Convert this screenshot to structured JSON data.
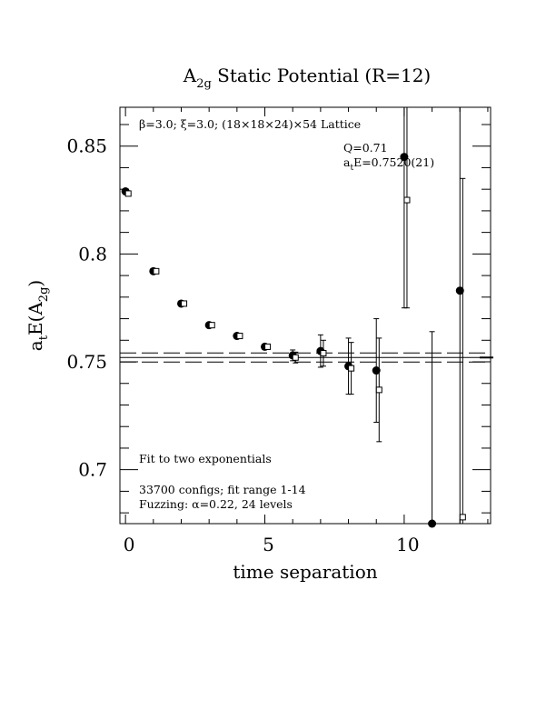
{
  "chart_data": {
    "type": "scatter",
    "title": {
      "main": "A",
      "sub": "2g",
      "rest": " Static Potential (R=12)"
    },
    "xlabel": "time separation",
    "ylabel": {
      "a": "a",
      "t": "t",
      "E": "E(A",
      "two": "2g",
      "close": ")"
    },
    "xlim": [
      -0.2,
      13.1
    ],
    "ylim": [
      0.675,
      0.868
    ],
    "x_ticks": [
      0,
      5,
      10
    ],
    "y_ticks": [
      0.7,
      0.75,
      0.8,
      0.85
    ],
    "x_tick_labels": [
      "0",
      "5",
      "10"
    ],
    "y_tick_labels": [
      "0.7",
      "0.75",
      "0.8",
      "0.85"
    ],
    "annotations": {
      "lattice": "β=3.0; ξ=3.0; (18×18×24)×54 Lattice",
      "q": "Q=0.71",
      "energy": {
        "a": "a",
        "t": "t",
        "rest": "E=0.7520(21)"
      },
      "fit": "Fit to two exponentials",
      "configs": "33700 configs; fit range 1-14",
      "fuzzing": "Fuzzing: α=0.22, 24 levels"
    },
    "fit_value": 0.752,
    "fit_error": 0.0021,
    "series": [
      {
        "marker": "filled-circle",
        "points": [
          {
            "x": 0,
            "y": 0.829,
            "err": 0.0005
          },
          {
            "x": 1,
            "y": 0.792,
            "err": 0.0005
          },
          {
            "x": 2,
            "y": 0.777,
            "err": 0.0005
          },
          {
            "x": 3,
            "y": 0.767,
            "err": 0.0007
          },
          {
            "x": 4,
            "y": 0.762,
            "err": 0.0008
          },
          {
            "x": 5,
            "y": 0.757,
            "err": 0.0011
          },
          {
            "x": 6,
            "y": 0.753,
            "err": 0.0025
          },
          {
            "x": 7,
            "y": 0.755,
            "err": 0.0075
          },
          {
            "x": 8,
            "y": 0.748,
            "err": 0.013
          },
          {
            "x": 9,
            "y": 0.746,
            "err": 0.024
          },
          {
            "x": 10,
            "y": 0.845,
            "err": 0.07
          },
          {
            "x": 11,
            "y": 0.674,
            "err": 0.09
          },
          {
            "x": 12,
            "y": 0.783,
            "err": 0.12
          }
        ]
      },
      {
        "marker": "open-square",
        "points": [
          {
            "x": 0.1,
            "y": 0.828,
            "err": 0.0005
          },
          {
            "x": 1.1,
            "y": 0.792,
            "err": 0.0005
          },
          {
            "x": 2.1,
            "y": 0.777,
            "err": 0.0005
          },
          {
            "x": 3.1,
            "y": 0.767,
            "err": 0.0006
          },
          {
            "x": 4.1,
            "y": 0.762,
            "err": 0.0008
          },
          {
            "x": 5.1,
            "y": 0.757,
            "err": 0.0012
          },
          {
            "x": 6.1,
            "y": 0.752,
            "err": 0.0025
          },
          {
            "x": 7.1,
            "y": 0.754,
            "err": 0.006
          },
          {
            "x": 8.1,
            "y": 0.747,
            "err": 0.012
          },
          {
            "x": 9.1,
            "y": 0.737,
            "err": 0.024
          },
          {
            "x": 10.1,
            "y": 0.825,
            "err": 0.05
          },
          {
            "x": 12.1,
            "y": 0.678,
            "err": 0.157
          }
        ]
      }
    ]
  }
}
